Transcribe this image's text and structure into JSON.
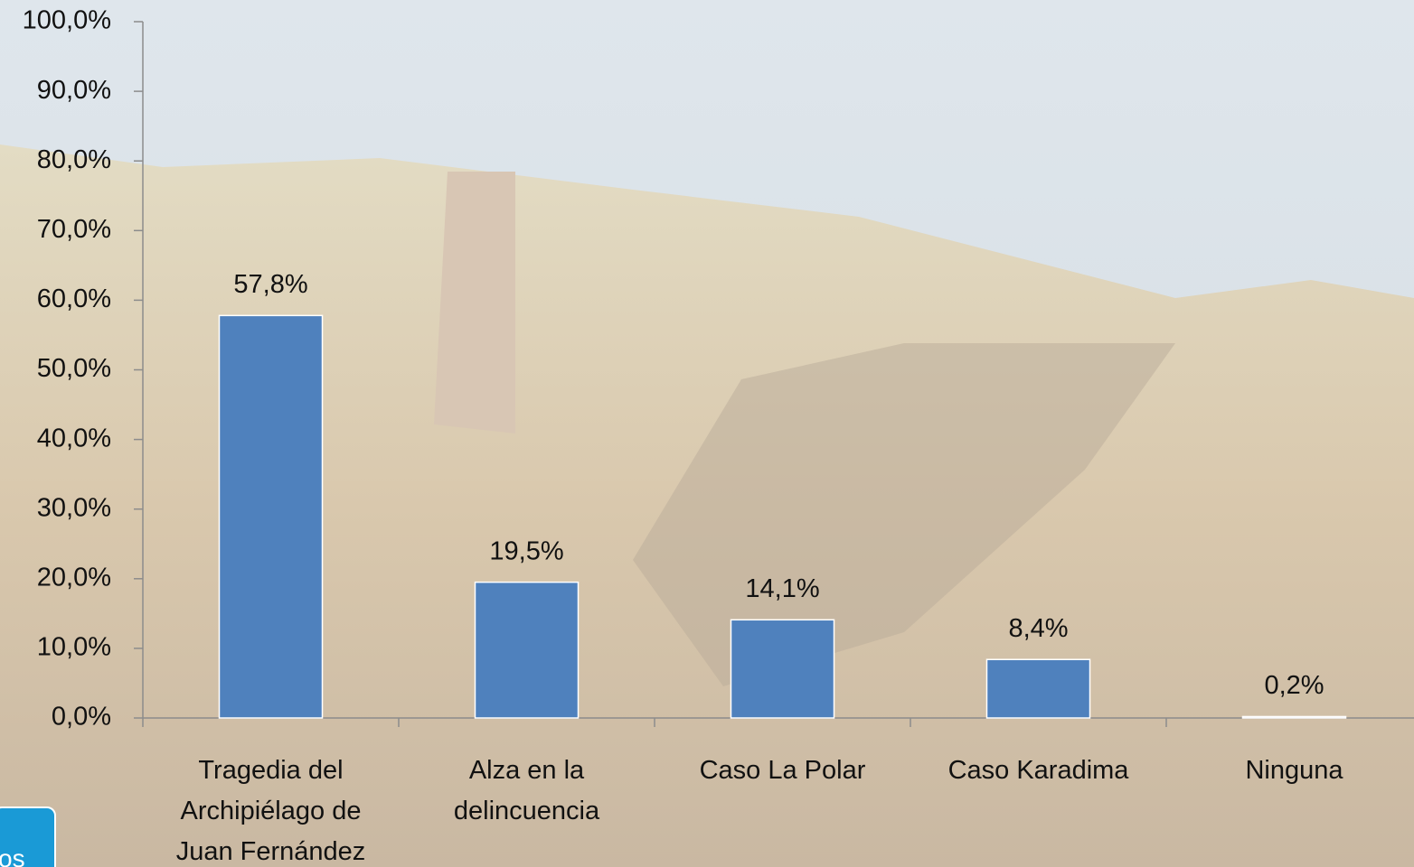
{
  "chart_data": {
    "type": "bar",
    "categories": [
      "Tragedia del Archipiélago de Juan Fernández",
      "Alza en la delincuencia",
      "Caso La Polar",
      "Caso Karadima",
      "Ninguna"
    ],
    "values": [
      57.8,
      19.5,
      14.1,
      8.4,
      0.2
    ],
    "value_labels": [
      "57,8%",
      "19,5%",
      "14,1%",
      "8,4%",
      "0,2%"
    ],
    "color": "#4f81bd",
    "ylim": [
      0,
      100
    ],
    "yticks": [
      {
        "value": 0,
        "label": "0,0%"
      },
      {
        "value": 10,
        "label": "10,0%"
      },
      {
        "value": 20,
        "label": "20,0%"
      },
      {
        "value": 30,
        "label": "30,0%"
      },
      {
        "value": 40,
        "label": "40,0%"
      },
      {
        "value": 50,
        "label": "50,0%"
      },
      {
        "value": 60,
        "label": "60,0%"
      },
      {
        "value": 70,
        "label": "70,0%"
      },
      {
        "value": 80,
        "label": "80,0%"
      },
      {
        "value": 90,
        "label": "90,0%"
      },
      {
        "value": 100,
        "label": "100,0%"
      }
    ],
    "grid": false
  },
  "nav_button": {
    "label": "os"
  }
}
